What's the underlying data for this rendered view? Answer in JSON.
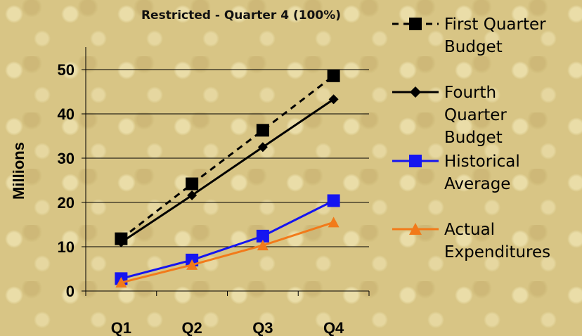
{
  "chart_data": {
    "type": "line",
    "title": "Restricted  - Quarter 4 (100%)",
    "xlabel": "",
    "ylabel": "Millions",
    "categories": [
      "Q1",
      "Q2",
      "Q3",
      "Q4"
    ],
    "ylim": [
      0,
      50
    ],
    "yticks": [
      0,
      10,
      20,
      30,
      40,
      50
    ],
    "grid": true,
    "legend_position": "right",
    "series": [
      {
        "name": "First Quarter Budget",
        "values": [
          11.8,
          24.2,
          36.3,
          48.6
        ],
        "color": "#000000",
        "marker": "square",
        "line_style": "dashed"
      },
      {
        "name": "Fourth Quarter Budget",
        "values": [
          11.0,
          21.6,
          32.5,
          43.3
        ],
        "color": "#000000",
        "marker": "diamond",
        "line_style": "solid"
      },
      {
        "name": "Historical Average",
        "values": [
          2.8,
          7.0,
          12.4,
          20.4
        ],
        "color": "#1515f0",
        "marker": "square",
        "line_style": "solid"
      },
      {
        "name": "Actual Expenditures",
        "values": [
          1.9,
          5.9,
          10.3,
          15.5
        ],
        "color": "#f27a1a",
        "marker": "triangle",
        "line_style": "solid"
      }
    ],
    "legend_lines": [
      [
        "First Quarter",
        "Budget"
      ],
      [
        "Fourth",
        "Quarter",
        "Budget"
      ],
      [
        "Historical",
        "Average"
      ],
      [
        "Actual",
        "Expenditures"
      ]
    ]
  }
}
